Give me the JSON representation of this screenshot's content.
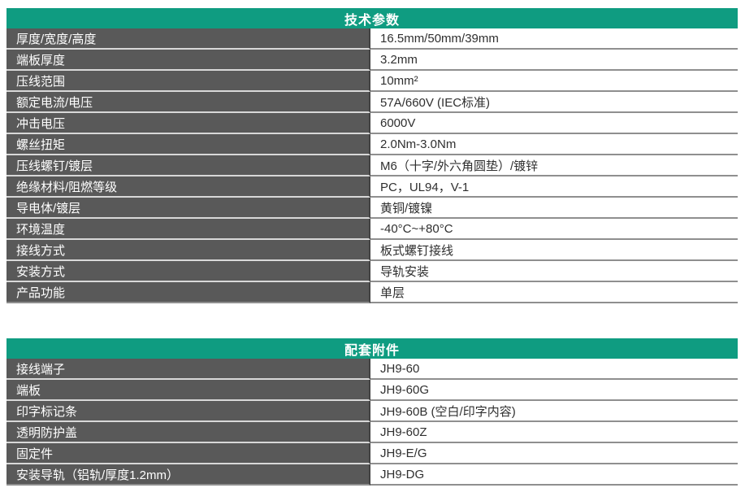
{
  "colors": {
    "accent_teal": "#0f9c81",
    "label_bg_gray": "#595959",
    "value_text": "#2f2f2f"
  },
  "tables": [
    {
      "title": "技术参数",
      "rows": [
        {
          "label": "厚度/宽度/高度",
          "value": "16.5mm/50mm/39mm"
        },
        {
          "label": "端板厚度",
          "value": "3.2mm"
        },
        {
          "label": "压线范围",
          "value": "10mm²"
        },
        {
          "label": "额定电流/电压",
          "value": "57A/660V (IEC标准)"
        },
        {
          "label": "冲击电压",
          "value": "6000V"
        },
        {
          "label": "螺丝扭矩",
          "value": "2.0Nm-3.0Nm"
        },
        {
          "label": "压线螺钉/镀层",
          "value": "M6（十字/外六角圆垫）/镀锌"
        },
        {
          "label": "绝缘材料/阻燃等级",
          "value": "PC，UL94，V-1"
        },
        {
          "label": "导电体/镀层",
          "value": "黄铜/镀镍"
        },
        {
          "label": "环境温度",
          "value": "-40°C~+80°C"
        },
        {
          "label": "接线方式",
          "value": "板式螺钉接线"
        },
        {
          "label": "安装方式",
          "value": "导轨安装"
        },
        {
          "label": "产品功能",
          "value": "单层"
        }
      ]
    },
    {
      "title": "配套附件",
      "rows": [
        {
          "label": "接线端子",
          "value": "JH9-60"
        },
        {
          "label": "端板",
          "value": "JH9-60G"
        },
        {
          "label": "印字标记条",
          "value": "JH9-60B (空白/印字内容)"
        },
        {
          "label": "透明防护盖",
          "value": "JH9-60Z"
        },
        {
          "label": "固定件",
          "value": "JH9-E/G"
        },
        {
          "label": "安装导轨（铝轨/厚度1.2mm）",
          "value": "JH9-DG"
        }
      ]
    }
  ]
}
